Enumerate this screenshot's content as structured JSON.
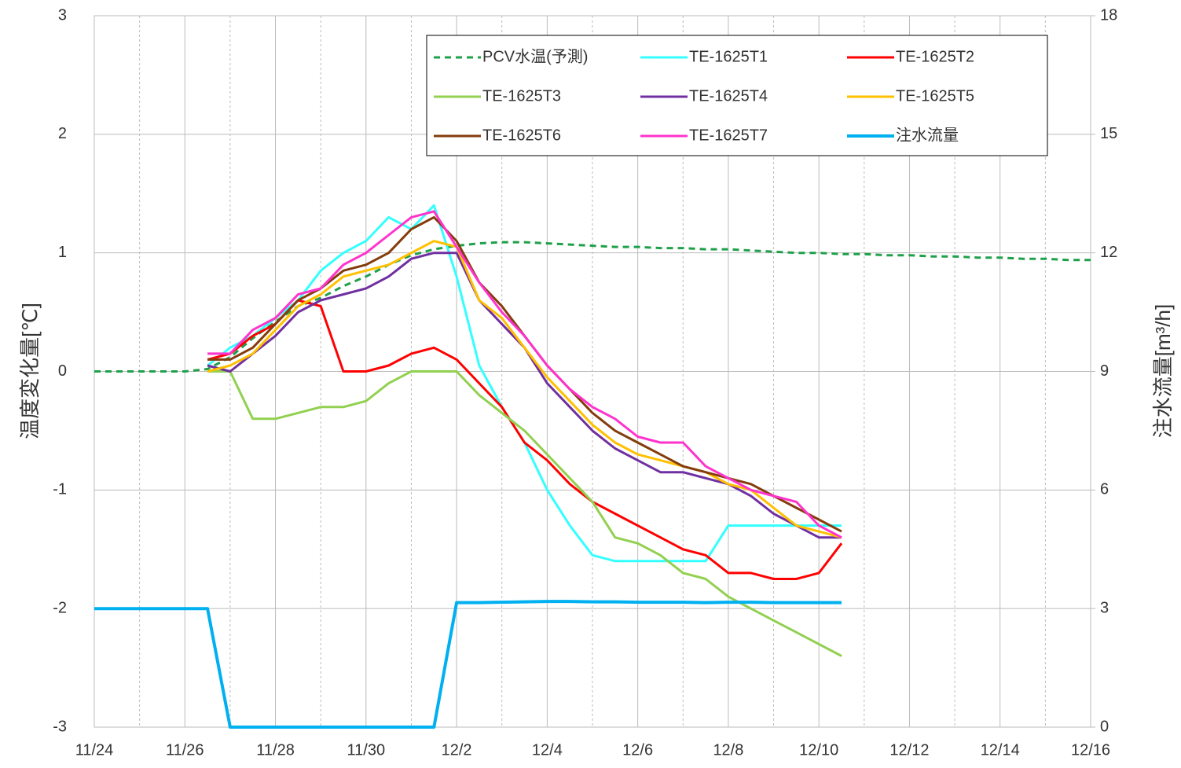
{
  "chart_data": {
    "type": "line",
    "ylabel": "温度変化量[℃]",
    "y2label": "注水流量[m³/h]",
    "categories": [
      "11/24",
      null,
      null,
      null,
      "11/26",
      null,
      null,
      null,
      "11/28",
      null,
      null,
      null,
      "11/30",
      null,
      null,
      null,
      "12/2",
      null,
      null,
      null,
      "12/4",
      null,
      null,
      null,
      "12/6",
      null,
      null,
      null,
      "12/8",
      null,
      null,
      null,
      "12/10",
      null,
      null,
      null,
      "12/12",
      null,
      null,
      null,
      "12/14",
      null,
      null,
      null,
      "12/16"
    ],
    "ylim": [
      -3,
      3
    ],
    "yticks": [
      -3,
      -2,
      -1,
      0,
      1,
      2,
      3
    ],
    "y2lim": [
      0,
      18
    ],
    "y2ticks": [
      0,
      3,
      6,
      9,
      12,
      15,
      18
    ],
    "grid": true,
    "series": [
      {
        "name": "PCV水温(予測)",
        "color": "#1fa04a",
        "dashed": true,
        "values": [
          0,
          0,
          0,
          0,
          0,
          0.02,
          0.12,
          0.28,
          0.42,
          0.55,
          0.62,
          0.72,
          0.8,
          0.9,
          0.98,
          1.03,
          1.06,
          1.08,
          1.09,
          1.09,
          1.08,
          1.07,
          1.06,
          1.05,
          1.05,
          1.04,
          1.04,
          1.03,
          1.03,
          1.02,
          1.01,
          1.0,
          1.0,
          0.99,
          0.99,
          0.98,
          0.98,
          0.97,
          0.97,
          0.96,
          0.96,
          0.95,
          0.95,
          0.94,
          0.94
        ]
      },
      {
        "name": "TE-1625T1",
        "color": "#33ffff",
        "values": [
          null,
          null,
          null,
          null,
          null,
          0.05,
          0.2,
          0.3,
          0.45,
          0.6,
          0.85,
          1.0,
          1.1,
          1.3,
          1.2,
          1.4,
          0.8,
          0.05,
          -0.3,
          -0.6,
          -1.0,
          -1.3,
          -1.55,
          -1.6,
          -1.6,
          -1.6,
          -1.6,
          -1.6,
          -1.3,
          -1.3,
          -1.3,
          -1.3,
          -1.3,
          -1.3,
          null,
          null,
          null,
          null,
          null,
          null,
          null,
          null,
          null,
          null,
          null
        ]
      },
      {
        "name": "TE-1625T2",
        "color": "#ff0000",
        "values": [
          null,
          null,
          null,
          null,
          null,
          0.1,
          0.15,
          0.3,
          0.4,
          0.6,
          0.55,
          0.0,
          0.0,
          0.05,
          0.15,
          0.2,
          0.1,
          -0.1,
          -0.3,
          -0.6,
          -0.75,
          -0.95,
          -1.1,
          -1.2,
          -1.3,
          -1.4,
          -1.5,
          -1.55,
          -1.7,
          -1.7,
          -1.75,
          -1.75,
          -1.7,
          -1.45,
          null,
          null,
          null,
          null,
          null,
          null,
          null,
          null,
          null,
          null,
          null
        ]
      },
      {
        "name": "TE-1625T3",
        "color": "#92d050",
        "values": [
          null,
          null,
          null,
          null,
          null,
          0.0,
          0.0,
          -0.4,
          -0.4,
          -0.35,
          -0.3,
          -0.3,
          -0.25,
          -0.1,
          0.0,
          0.0,
          0.0,
          -0.2,
          -0.35,
          -0.5,
          -0.7,
          -0.9,
          -1.1,
          -1.4,
          -1.45,
          -1.55,
          -1.7,
          -1.75,
          -1.9,
          -2.0,
          -2.1,
          -2.2,
          -2.3,
          -2.4,
          null,
          null,
          null,
          null,
          null,
          null,
          null,
          null,
          null,
          null,
          null
        ]
      },
      {
        "name": "TE-1625T4",
        "color": "#7030a0",
        "values": [
          null,
          null,
          null,
          null,
          null,
          0.05,
          0.0,
          0.15,
          0.3,
          0.5,
          0.6,
          0.65,
          0.7,
          0.8,
          0.95,
          1.0,
          1.0,
          0.6,
          0.4,
          0.2,
          -0.1,
          -0.3,
          -0.5,
          -0.65,
          -0.75,
          -0.85,
          -0.85,
          -0.9,
          -0.95,
          -1.05,
          -1.2,
          -1.3,
          -1.4,
          -1.4,
          null,
          null,
          null,
          null,
          null,
          null,
          null,
          null,
          null,
          null,
          null
        ]
      },
      {
        "name": "TE-1625T5",
        "color": "#ffc000",
        "values": [
          null,
          null,
          null,
          null,
          null,
          0.0,
          0.05,
          0.15,
          0.35,
          0.55,
          0.65,
          0.8,
          0.85,
          0.9,
          1.0,
          1.1,
          1.05,
          0.6,
          0.45,
          0.2,
          -0.05,
          -0.25,
          -0.45,
          -0.6,
          -0.7,
          -0.75,
          -0.8,
          -0.85,
          -0.95,
          -1.0,
          -1.15,
          -1.3,
          -1.35,
          -1.4,
          null,
          null,
          null,
          null,
          null,
          null,
          null,
          null,
          null,
          null,
          null
        ]
      },
      {
        "name": "TE-1625T6",
        "color": "#843c0c",
        "values": [
          null,
          null,
          null,
          null,
          null,
          0.1,
          0.1,
          0.2,
          0.4,
          0.6,
          0.7,
          0.85,
          0.9,
          1.0,
          1.2,
          1.3,
          1.1,
          0.75,
          0.55,
          0.3,
          0.05,
          -0.15,
          -0.35,
          -0.5,
          -0.6,
          -0.7,
          -0.8,
          -0.85,
          -0.9,
          -0.95,
          -1.05,
          -1.15,
          -1.25,
          -1.35,
          null,
          null,
          null,
          null,
          null,
          null,
          null,
          null,
          null,
          null,
          null
        ]
      },
      {
        "name": "TE-1625T7",
        "color": "#ff33cc",
        "values": [
          null,
          null,
          null,
          null,
          null,
          0.15,
          0.15,
          0.35,
          0.45,
          0.65,
          0.7,
          0.9,
          1.0,
          1.15,
          1.3,
          1.35,
          1.05,
          0.75,
          0.5,
          0.3,
          0.05,
          -0.15,
          -0.3,
          -0.4,
          -0.55,
          -0.6,
          -0.6,
          -0.8,
          -0.9,
          -1.0,
          -1.05,
          -1.1,
          -1.3,
          -1.4,
          null,
          null,
          null,
          null,
          null,
          null,
          null,
          null,
          null,
          null,
          null
        ]
      },
      {
        "name": "注水流量",
        "color": "#00b0f0",
        "axis": "y2",
        "values": [
          3,
          3,
          3,
          3,
          3,
          3,
          0,
          0,
          0,
          0,
          0,
          0,
          0,
          0,
          0,
          0,
          3.15,
          3.15,
          3.16,
          3.17,
          3.18,
          3.18,
          3.17,
          3.17,
          3.16,
          3.16,
          3.16,
          3.15,
          3.16,
          3.16,
          3.15,
          3.15,
          3.15,
          3.15,
          null,
          null,
          null,
          null,
          null,
          null,
          null,
          null,
          null,
          null,
          null
        ]
      }
    ]
  }
}
